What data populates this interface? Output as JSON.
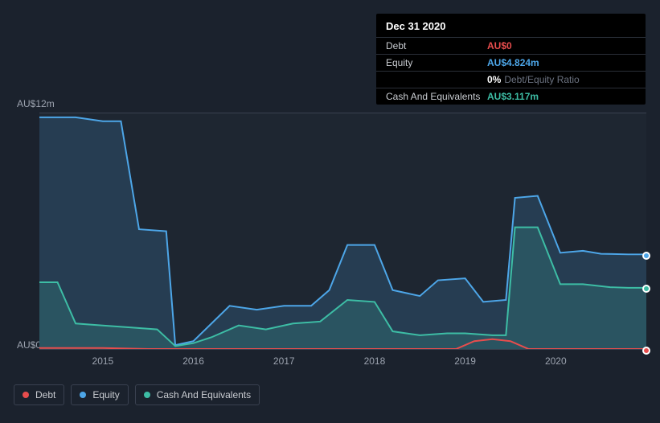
{
  "tooltip": {
    "title": "Dec 31 2020",
    "rows": [
      {
        "label": "Debt",
        "value": "AU$0",
        "class": "debt"
      },
      {
        "label": "Equity",
        "value": "AU$4.824m",
        "class": "equity"
      },
      {
        "label": "",
        "value": "0%",
        "class": "ratio",
        "suffix": "Debt/Equity Ratio"
      },
      {
        "label": "Cash And Equivalents",
        "value": "AU$3.117m",
        "class": "cash"
      }
    ]
  },
  "chart": {
    "type": "area",
    "background_color": "#1e2631",
    "grid_color": "#3a4150",
    "y_axis": {
      "min": 0,
      "max": 12,
      "labels": [
        {
          "text": "AU$12m",
          "y_val": 12
        },
        {
          "text": "AU$0",
          "y_val": 0
        }
      ],
      "label_fontsize": 12,
      "label_color": "#9ca3af"
    },
    "x_axis": {
      "min": 2014.3,
      "max": 2021.0,
      "ticks": [
        2015,
        2016,
        2017,
        2018,
        2019,
        2020
      ],
      "label_fontsize": 12,
      "label_color": "#9ca3af"
    },
    "series": [
      {
        "name": "Equity",
        "color": "#4da6e8",
        "fill_opacity": 0.18,
        "line_width": 2,
        "points": [
          [
            2014.3,
            11.8
          ],
          [
            2014.7,
            11.8
          ],
          [
            2015.0,
            11.6
          ],
          [
            2015.2,
            11.6
          ],
          [
            2015.4,
            6.1
          ],
          [
            2015.7,
            6.0
          ],
          [
            2015.8,
            0.2
          ],
          [
            2016.0,
            0.4
          ],
          [
            2016.2,
            1.3
          ],
          [
            2016.4,
            2.2
          ],
          [
            2016.7,
            2.0
          ],
          [
            2017.0,
            2.2
          ],
          [
            2017.3,
            2.2
          ],
          [
            2017.5,
            3.0
          ],
          [
            2017.7,
            5.3
          ],
          [
            2018.0,
            5.3
          ],
          [
            2018.2,
            3.0
          ],
          [
            2018.5,
            2.7
          ],
          [
            2018.7,
            3.5
          ],
          [
            2019.0,
            3.6
          ],
          [
            2019.2,
            2.4
          ],
          [
            2019.45,
            2.5
          ],
          [
            2019.55,
            7.7
          ],
          [
            2019.8,
            7.8
          ],
          [
            2020.05,
            4.9
          ],
          [
            2020.3,
            5.0
          ],
          [
            2020.5,
            4.85
          ],
          [
            2020.8,
            4.82
          ],
          [
            2021.0,
            4.82
          ]
        ]
      },
      {
        "name": "Cash And Equivalents",
        "color": "#3dbda5",
        "fill_opacity": 0.18,
        "line_width": 2,
        "points": [
          [
            2014.3,
            3.4
          ],
          [
            2014.5,
            3.4
          ],
          [
            2014.7,
            1.3
          ],
          [
            2015.0,
            1.2
          ],
          [
            2015.3,
            1.1
          ],
          [
            2015.6,
            1.0
          ],
          [
            2015.8,
            0.15
          ],
          [
            2016.0,
            0.3
          ],
          [
            2016.2,
            0.6
          ],
          [
            2016.5,
            1.2
          ],
          [
            2016.8,
            1.0
          ],
          [
            2017.1,
            1.3
          ],
          [
            2017.4,
            1.4
          ],
          [
            2017.7,
            2.5
          ],
          [
            2018.0,
            2.4
          ],
          [
            2018.2,
            0.9
          ],
          [
            2018.5,
            0.7
          ],
          [
            2018.8,
            0.8
          ],
          [
            2019.0,
            0.8
          ],
          [
            2019.3,
            0.7
          ],
          [
            2019.45,
            0.7
          ],
          [
            2019.55,
            6.2
          ],
          [
            2019.8,
            6.2
          ],
          [
            2020.05,
            3.3
          ],
          [
            2020.3,
            3.3
          ],
          [
            2020.6,
            3.15
          ],
          [
            2020.8,
            3.12
          ],
          [
            2021.0,
            3.12
          ]
        ]
      },
      {
        "name": "Debt",
        "color": "#e84d4d",
        "fill_opacity": 0.0,
        "line_width": 2,
        "points": [
          [
            2014.3,
            0.05
          ],
          [
            2015.0,
            0.05
          ],
          [
            2015.5,
            0.0
          ],
          [
            2016.0,
            0.0
          ],
          [
            2017.0,
            0.0
          ],
          [
            2018.0,
            0.0
          ],
          [
            2018.9,
            0.0
          ],
          [
            2019.1,
            0.4
          ],
          [
            2019.3,
            0.5
          ],
          [
            2019.5,
            0.4
          ],
          [
            2019.7,
            0.0
          ],
          [
            2020.5,
            0.0
          ],
          [
            2021.0,
            0.0
          ]
        ]
      }
    ],
    "end_markers": [
      {
        "series": "Equity",
        "color": "#4da6e8",
        "x": 2021.0,
        "y": 4.82
      },
      {
        "series": "Cash And Equivalents",
        "color": "#3dbda5",
        "x": 2021.0,
        "y": 3.12
      },
      {
        "series": "Debt",
        "color": "#e84d4d",
        "x": 2021.0,
        "y": 0.0
      }
    ]
  },
  "legend": {
    "items": [
      {
        "label": "Debt",
        "color": "#e84d4d"
      },
      {
        "label": "Equity",
        "color": "#4da6e8"
      },
      {
        "label": "Cash And Equivalents",
        "color": "#3dbda5"
      }
    ]
  }
}
